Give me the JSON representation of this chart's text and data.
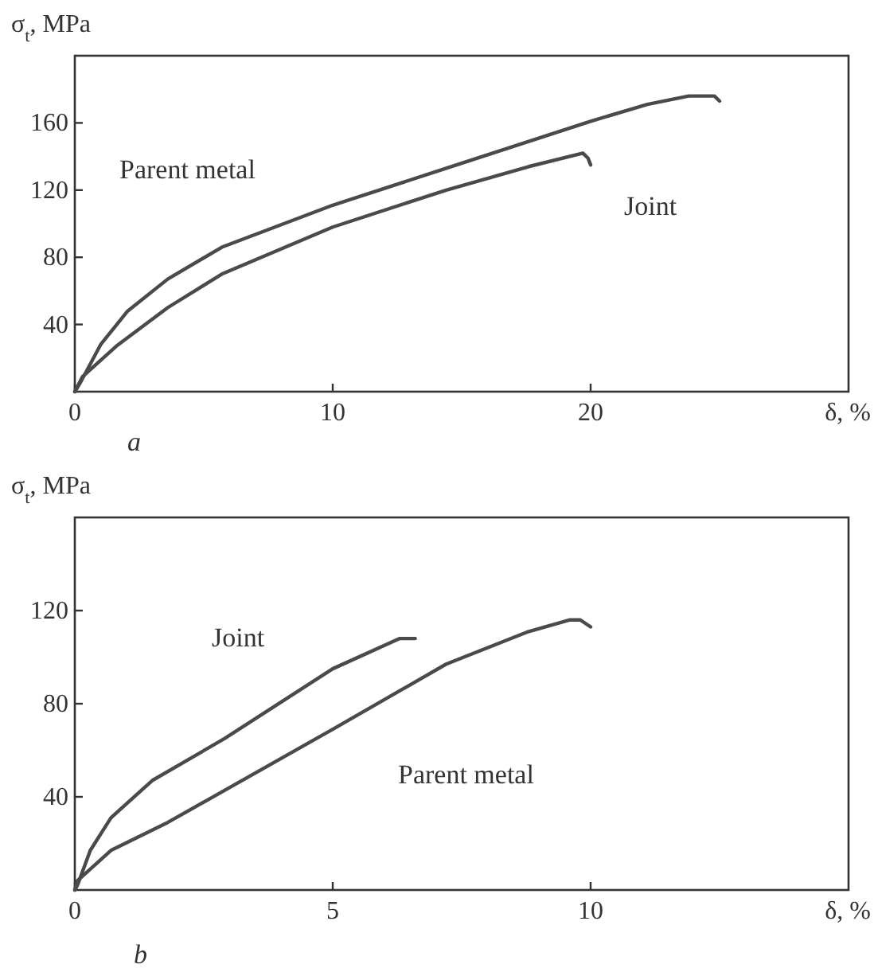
{
  "chart_data": [
    {
      "type": "line",
      "xlabel": "δ, %",
      "ylabel": "σ$_{t}$, MPa",
      "annotations": [
        "a"
      ],
      "xlim": [
        0,
        30
      ],
      "ylim": [
        0,
        200
      ],
      "xticks": [
        0,
        10,
        20
      ],
      "yticks": [
        40,
        80,
        120,
        160
      ],
      "grid": false,
      "legend": false,
      "marker": "none",
      "line_style": "solid",
      "series": [
        {
          "name": "Parent metal",
          "color": "#4a4a4a",
          "x": [
            0,
            0.2,
            1.0,
            2.05,
            3.6,
            5.7,
            10,
            14.4,
            20,
            22.2,
            23.8,
            24.8,
            25
          ],
          "values": [
            0,
            5,
            28,
            48,
            67,
            86,
            111,
            133,
            161,
            171,
            176,
            176,
            173
          ]
        },
        {
          "name": "Joint",
          "color": "#4a4a4a",
          "x": [
            0,
            0.3,
            1.6,
            3.6,
            5.7,
            10,
            14.4,
            17.6,
            19.7,
            19.9,
            20
          ],
          "values": [
            0,
            9,
            27,
            50,
            70,
            98,
            120,
            134,
            142,
            139,
            135
          ]
        }
      ]
    },
    {
      "type": "line",
      "xlabel": "δ, %",
      "ylabel": "σ$_{t}$, MPa",
      "annotations": [
        "b"
      ],
      "xlim": [
        0,
        15
      ],
      "ylim": [
        0,
        160
      ],
      "xticks": [
        0,
        5,
        10
      ],
      "yticks": [
        40,
        80,
        120
      ],
      "grid": false,
      "legend": false,
      "marker": "none",
      "line_style": "solid",
      "series": [
        {
          "name": "Joint",
          "color": "#4a4a4a",
          "x": [
            0,
            0.05,
            0.3,
            0.7,
            1.5,
            2.9,
            5,
            6.3,
            6.6
          ],
          "values": [
            0,
            2,
            17,
            31,
            47,
            65,
            95,
            108,
            108
          ]
        },
        {
          "name": "Parent metal",
          "color": "#4a4a4a",
          "x": [
            0,
            0.05,
            0.7,
            1.8,
            5,
            7.2,
            8.8,
            9.6,
            9.8,
            10
          ],
          "values": [
            0,
            4,
            17,
            29,
            69,
            97,
            111,
            116,
            116,
            113
          ]
        }
      ]
    }
  ]
}
